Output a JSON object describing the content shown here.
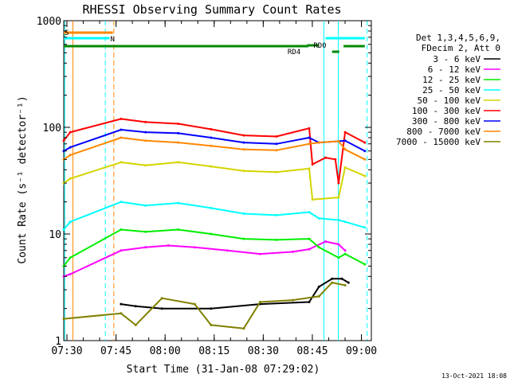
{
  "chart_data": {
    "type": "line",
    "title": "RHESSI Observing Summary Count Rates",
    "xlabel": "Start Time (31-Jan-08 07:29:02)",
    "ylabel": "Count Rate (s⁻¹ detector⁻¹)",
    "y_scale": "log",
    "xlim_minutes": [
      0,
      94
    ],
    "ylim": [
      1,
      1000
    ],
    "x_tick_labels": [
      "07:30",
      "07:45",
      "08:00",
      "08:15",
      "08:30",
      "08:45",
      "09:00"
    ],
    "x_tick_minutes": [
      0.97,
      15.97,
      30.97,
      45.97,
      60.97,
      75.97,
      90.97
    ],
    "y_tick_labels": [
      "1",
      "10",
      "100",
      "1000"
    ],
    "y_tick_values": [
      1,
      10,
      100,
      1000
    ],
    "legend_header": [
      "Det 1,3,4,5,6,9,",
      "FDecim 2, Att 0"
    ],
    "series": [
      {
        "name": "3 - 6 keV",
        "color": "#000000",
        "points": [
          [
            17.5,
            2.2
          ],
          [
            22,
            2.1
          ],
          [
            30,
            2.0
          ],
          [
            45,
            2.0
          ],
          [
            60,
            2.2
          ],
          [
            75,
            2.3
          ],
          [
            78,
            3.2
          ],
          [
            82,
            3.8
          ],
          [
            85,
            3.8
          ],
          [
            87,
            3.5
          ]
        ]
      },
      {
        "name": "6 - 12 keV",
        "color": "#ff00ff",
        "points": [
          [
            0,
            4.0
          ],
          [
            2,
            4.2
          ],
          [
            17.5,
            7.0
          ],
          [
            25,
            7.5
          ],
          [
            32,
            7.8
          ],
          [
            40,
            7.5
          ],
          [
            50,
            7.0
          ],
          [
            60,
            6.5
          ],
          [
            70,
            6.8
          ],
          [
            75,
            7.2
          ],
          [
            80,
            8.5
          ],
          [
            84,
            8.0
          ],
          [
            86,
            7.0
          ]
        ]
      },
      {
        "name": "12 - 25 keV",
        "color": "#00ee00",
        "points": [
          [
            0,
            5.0
          ],
          [
            2,
            6.0
          ],
          [
            17.5,
            11.0
          ],
          [
            25,
            10.5
          ],
          [
            35,
            11.0
          ],
          [
            45,
            10.0
          ],
          [
            55,
            9.0
          ],
          [
            65,
            8.8
          ],
          [
            75,
            9.0
          ],
          [
            78,
            7.5
          ],
          [
            84,
            6.0
          ],
          [
            86,
            6.5
          ],
          [
            92,
            5.2
          ]
        ]
      },
      {
        "name": "25 - 50 keV",
        "color": "#00ffff",
        "points": [
          [
            0,
            11.0
          ],
          [
            2,
            13.0
          ],
          [
            17.5,
            20.0
          ],
          [
            25,
            18.5
          ],
          [
            35,
            19.5
          ],
          [
            45,
            17.5
          ],
          [
            55,
            15.5
          ],
          [
            65,
            15.0
          ],
          [
            75,
            16.0
          ],
          [
            78,
            14.0
          ],
          [
            84,
            13.5
          ],
          [
            86,
            13.0
          ],
          [
            92,
            11.5
          ]
        ]
      },
      {
        "name": "50 - 100 keV",
        "color": "#d4d400",
        "points": [
          [
            0,
            30.0
          ],
          [
            2,
            33.0
          ],
          [
            17.5,
            47.0
          ],
          [
            25,
            44.0
          ],
          [
            35,
            47.0
          ],
          [
            45,
            43.0
          ],
          [
            55,
            39.0
          ],
          [
            65,
            38.0
          ],
          [
            75,
            41.0
          ],
          [
            76,
            21.0
          ],
          [
            84,
            22.0
          ],
          [
            86,
            42.0
          ],
          [
            92,
            35.0
          ]
        ]
      },
      {
        "name": "100 - 300 keV",
        "color": "#ff0000",
        "points": [
          [
            0,
            75.0
          ],
          [
            2,
            90.0
          ],
          [
            17.5,
            120.0
          ],
          [
            25,
            112.0
          ],
          [
            35,
            108.0
          ],
          [
            45,
            96.0
          ],
          [
            55,
            84.0
          ],
          [
            65,
            82.0
          ],
          [
            75,
            98.0
          ],
          [
            76,
            45.0
          ],
          [
            80,
            52.0
          ],
          [
            83,
            50.0
          ],
          [
            84,
            30.0
          ],
          [
            86,
            90.0
          ],
          [
            92,
            72.0
          ]
        ]
      },
      {
        "name": "300 - 800 keV",
        "color": "#0000ff",
        "points": [
          [
            0,
            60.0
          ],
          [
            2,
            65.0
          ],
          [
            17.5,
            95.0
          ],
          [
            25,
            90.0
          ],
          [
            35,
            88.0
          ],
          [
            45,
            80.0
          ],
          [
            55,
            72.0
          ],
          [
            65,
            70.0
          ],
          [
            75,
            80.0
          ],
          [
            78,
            72.0
          ],
          [
            84,
            74.0
          ],
          [
            86,
            75.0
          ],
          [
            92,
            60.0
          ]
        ]
      },
      {
        "name": "800 - 7000 keV",
        "color": "#ff8800",
        "points": [
          [
            0,
            50.0
          ],
          [
            2,
            55.0
          ],
          [
            17.5,
            80.0
          ],
          [
            25,
            75.0
          ],
          [
            35,
            72.0
          ],
          [
            45,
            67.0
          ],
          [
            55,
            62.0
          ],
          [
            65,
            61.0
          ],
          [
            75,
            70.0
          ],
          [
            78,
            72.0
          ],
          [
            84,
            74.0
          ],
          [
            86,
            62.0
          ],
          [
            92,
            50.0
          ]
        ]
      },
      {
        "name": "7000 - 15000 keV",
        "color": "#808000",
        "points": [
          [
            0,
            1.6
          ],
          [
            17.5,
            1.8
          ],
          [
            22,
            1.4
          ],
          [
            30,
            2.5
          ],
          [
            40,
            2.2
          ],
          [
            45,
            1.4
          ],
          [
            55,
            1.3
          ],
          [
            60,
            2.3
          ],
          [
            70,
            2.4
          ],
          [
            78,
            2.6
          ],
          [
            82,
            3.5
          ],
          [
            86,
            3.3
          ]
        ]
      }
    ],
    "annotations": [
      {
        "text": "S",
        "color": "#ff8800",
        "x_start": 0.0,
        "x_end": 15.0
      },
      {
        "text": "N",
        "color": "#00ffff",
        "x_start": 0.0,
        "x_end": 14.0
      },
      {
        "text": "RD0",
        "color": "#00ffff",
        "x_start": 79.0,
        "x_end": 92.0
      },
      {
        "text": "RD4",
        "color": "#008800",
        "x_start": 0.0,
        "x_end": 92.0
      }
    ],
    "vertical_markers": [
      {
        "x": 0.3,
        "color": "#00ffff",
        "style": "solid"
      },
      {
        "x": 2.8,
        "color": "#ff8800",
        "style": "solid"
      },
      {
        "x": 12.7,
        "color": "#00ffff",
        "style": "dashed"
      },
      {
        "x": 15.3,
        "color": "#ff8800",
        "style": "dashed"
      },
      {
        "x": 79.5,
        "color": "#00ffff",
        "style": "solid"
      },
      {
        "x": 83.9,
        "color": "#00ffff",
        "style": "solid"
      },
      {
        "x": 92.7,
        "color": "#00ffff",
        "style": "dashed"
      }
    ],
    "legend_placement": "right",
    "grid": false
  },
  "footer": {
    "timestamp": "13-Oct-2021 18:08"
  }
}
